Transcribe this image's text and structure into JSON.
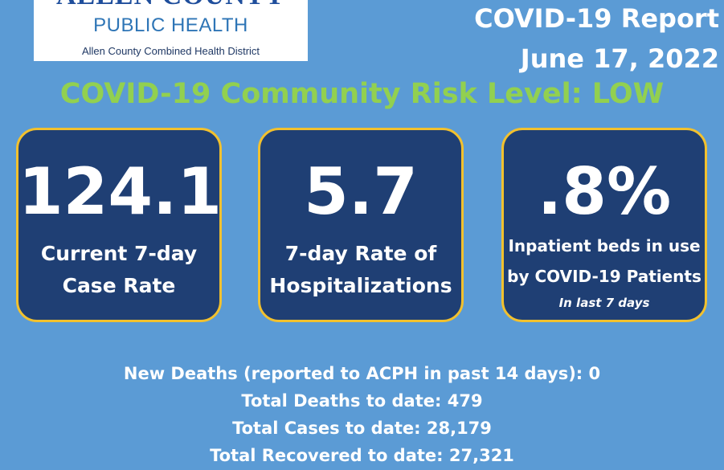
{
  "logo": {
    "top": "ALLEN COUNTY",
    "middle": "PUBLIC HEALTH",
    "bottom": "Allen County Combined Health District"
  },
  "report": {
    "title": "COVID-19 Report",
    "date": "June 17, 2022"
  },
  "risk_level": "COVID-19 Community Risk Level: LOW",
  "cards": [
    {
      "value": "124.1",
      "label_line1": "Current 7-day",
      "label_line2": "Case Rate"
    },
    {
      "value": "5.7",
      "label_line1": "7-day Rate of",
      "label_line2": "Hospitalizations"
    },
    {
      "value": ".8%",
      "label_line1": "Inpatient beds in use",
      "label_line2": "by COVID-19 Patients",
      "note": "In last  7 days"
    }
  ],
  "stats": {
    "new_deaths": "New Deaths (reported to ACPH in past 14 days): 0",
    "total_deaths": "Total Deaths to date: 479",
    "total_cases": "Total Cases to date: 28,179",
    "total_recovered": "Total Recovered to date: 27,321"
  },
  "colors": {
    "background": "#5b9bd5",
    "card": "#1f3f74",
    "card_border": "#f2c12e",
    "risk_text": "#92d050"
  }
}
